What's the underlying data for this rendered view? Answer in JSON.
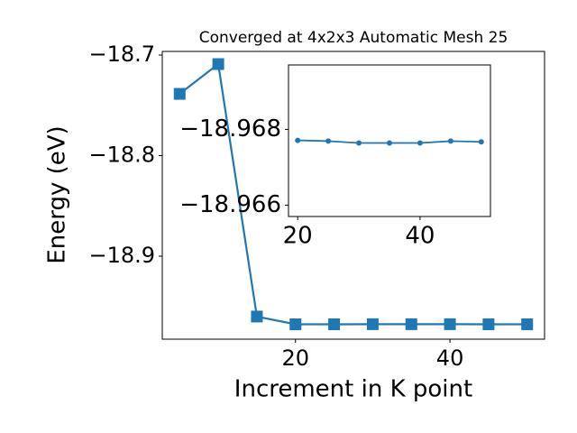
{
  "chart_data": [
    {
      "type": "line",
      "title": "Converged at 4x2x3 Automatic Mesh 25",
      "xlabel": "Increment in K point",
      "ylabel": "Energy (eV)",
      "x": [
        5,
        10,
        15,
        20,
        25,
        30,
        35,
        40,
        45,
        50
      ],
      "series": [
        {
          "color": "#1f77b4",
          "marker": "square",
          "values": [
            -18.7386,
            -18.709,
            -18.96,
            -18.9677,
            -18.9677,
            -18.9676,
            -18.9676,
            -18.9676,
            -18.9677,
            -18.9677
          ]
        }
      ],
      "xlim": [
        2.75,
        52.25
      ],
      "ylim": [
        -18.9825,
        -18.6964
      ],
      "xticks": [
        20,
        40
      ],
      "yticks": [
        {
          "value": -18.9,
          "label": "−18.9"
        },
        {
          "value": -18.8,
          "label": "−18.8"
        },
        {
          "value": -18.7,
          "label": "−18.7"
        }
      ]
    },
    {
      "type": "line",
      "x": [
        20,
        25,
        30,
        35,
        40,
        45,
        50
      ],
      "series": [
        {
          "color": "#1f77b4",
          "marker": "circle",
          "values": [
            -18.96771,
            -18.96769,
            -18.96764,
            -18.96764,
            -18.96764,
            -18.96769,
            -18.96767
          ]
        }
      ],
      "xlim": [
        18.5,
        51.5
      ],
      "ylim": [
        -18.9657,
        -18.9697
      ],
      "xticks": [
        20,
        40
      ],
      "yticks": [
        {
          "value": -18.966,
          "label": "−18.966"
        },
        {
          "value": -18.968,
          "label": "−18.968"
        }
      ]
    }
  ]
}
